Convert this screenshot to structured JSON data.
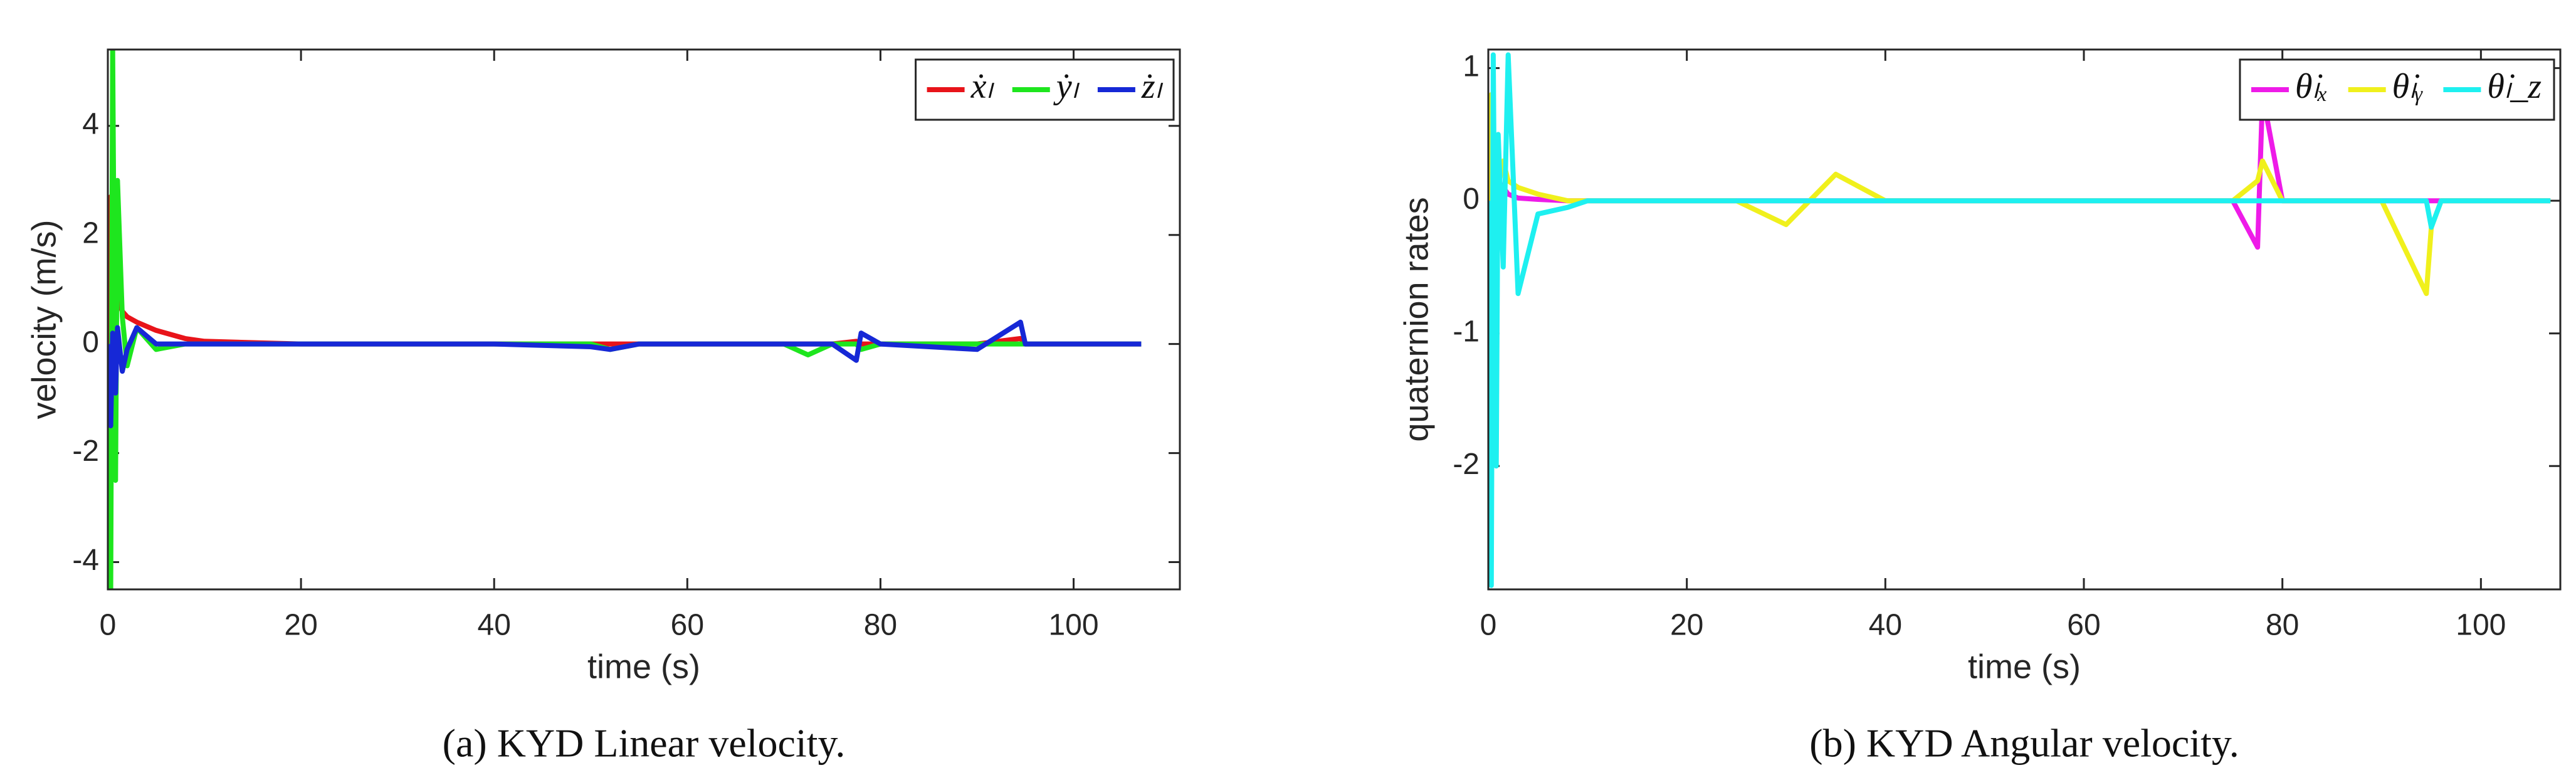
{
  "chart_data": [
    {
      "type": "line",
      "caption": "(a) KYD Linear velocity.",
      "xlabel": "time (s)",
      "ylabel": "velocity (m/s)",
      "x": [
        0,
        0.3,
        0.5,
        0.8,
        1,
        1.5,
        2,
        3,
        5,
        8,
        10,
        20,
        25,
        30,
        35,
        40,
        50,
        52,
        55,
        60,
        70,
        72.5,
        75,
        77.5,
        78,
        80,
        90,
        94.5,
        95,
        96,
        100,
        107
      ],
      "series": [
        {
          "name": "ẋₗ",
          "color": "#e8141a",
          "values": [
            0,
            2.7,
            1.5,
            1,
            0.8,
            0.6,
            0.5,
            0.4,
            0.25,
            0.1,
            0.05,
            0,
            0,
            0,
            0,
            0,
            0,
            0,
            0,
            0,
            0,
            0,
            0,
            0.05,
            0,
            0,
            0,
            0.1,
            0,
            0,
            0,
            0
          ]
        },
        {
          "name": "ẏₗ",
          "color": "#1ee61e",
          "values": [
            0,
            -4.5,
            5.4,
            -2.5,
            3,
            0.5,
            -0.4,
            0.3,
            -0.1,
            0,
            0,
            0,
            0,
            0,
            0,
            0,
            0,
            -0.1,
            0,
            0,
            0,
            -0.2,
            0,
            0,
            -0.1,
            0,
            0,
            0,
            0,
            0,
            0,
            0
          ]
        },
        {
          "name": "żₗ",
          "color": "#1628d6",
          "values": [
            0,
            -1.5,
            0.2,
            -0.9,
            0.3,
            -0.5,
            -0.1,
            0.3,
            0,
            0,
            0,
            0,
            0,
            0,
            0,
            0,
            -0.05,
            -0.1,
            0,
            0,
            0,
            0,
            0,
            -0.3,
            0.2,
            0,
            -0.1,
            0.4,
            0,
            0,
            0,
            0
          ]
        }
      ],
      "xlim": [
        0,
        111
      ],
      "ylim": [
        -4.5,
        5.4
      ],
      "xticks": [
        0,
        20,
        40,
        60,
        80,
        100
      ],
      "yticks": [
        -4,
        -2,
        0,
        2,
        4
      ],
      "legend": "upper right"
    },
    {
      "type": "line",
      "caption": "(b) KYD Angular velocity.",
      "xlabel": "time (s)",
      "ylabel": "quaternion rates",
      "x": [
        0,
        0.3,
        0.5,
        0.8,
        1,
        1.5,
        2,
        3,
        5,
        8,
        10,
        20,
        25,
        30,
        35,
        40,
        50,
        52,
        55,
        60,
        70,
        72.5,
        75,
        77.5,
        78,
        80,
        90,
        94.5,
        95,
        96,
        100,
        107
      ],
      "series": [
        {
          "name": "θ̇ₗₓ",
          "color": "#ee1be8",
          "values": [
            0,
            0.5,
            0.3,
            0.2,
            0.15,
            0.1,
            0.05,
            0.02,
            0.01,
            0,
            0,
            0,
            0,
            0,
            0,
            0,
            0,
            0,
            0,
            0,
            0,
            0,
            0,
            -0.35,
            0.8,
            0,
            0,
            0,
            0,
            0,
            0,
            0
          ]
        },
        {
          "name": "θ̇ₗᵧ",
          "color": "#f0f01c",
          "values": [
            0,
            0.8,
            -0.5,
            0.3,
            0.1,
            0.3,
            0.15,
            0.1,
            0.05,
            0,
            0,
            0,
            0,
            -0.18,
            0.2,
            0,
            0,
            0,
            0,
            0,
            0,
            0,
            0,
            0.15,
            0.3,
            0,
            0,
            -0.7,
            -0.2,
            0,
            0,
            0
          ]
        },
        {
          "name": "θ̇ₗ_z",
          "color": "#1ef0f0",
          "values": [
            0,
            -2.9,
            1.1,
            -2,
            0.5,
            -0.5,
            1.1,
            -0.7,
            -0.1,
            -0.05,
            0,
            0,
            0,
            0,
            0,
            0,
            0,
            0,
            0,
            0,
            0,
            0,
            0,
            0,
            0,
            0,
            0,
            0,
            -0.2,
            0,
            0,
            0
          ]
        }
      ],
      "xlim": [
        0,
        108
      ],
      "ylim": [
        -2.93,
        1.14
      ],
      "xticks": [
        0,
        20,
        40,
        60,
        80,
        100
      ],
      "yticks": [
        -2,
        -1,
        0,
        1
      ],
      "legend": "upper right"
    }
  ]
}
